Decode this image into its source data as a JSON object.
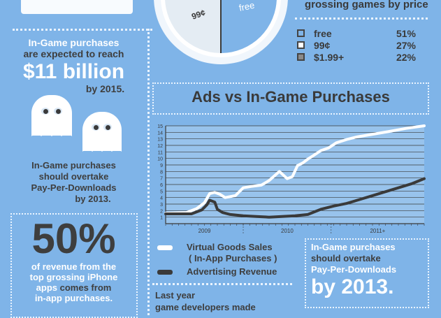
{
  "pie_labels": {
    "free": "free",
    "ninety_nine": "99¢"
  },
  "legend": {
    "title_tail": "grossing games by price",
    "items": [
      {
        "label": "free",
        "value": "51%",
        "color": "#7fb4e8"
      },
      {
        "label": "99¢",
        "value": "27%",
        "color": "#ffffff"
      },
      {
        "label": "$1.99+",
        "value": "22%",
        "color": "#8a8a8a"
      }
    ]
  },
  "left": {
    "purchases_intro_line1": "In-Game purchases",
    "purchases_intro_line2": "are expected to reach",
    "purchases_amount": "$11 billion",
    "purchases_year": "by 2015.",
    "overtake_line1": "In-Game purchases",
    "overtake_line2": "should overtake",
    "overtake_line3": "Pay-Per-Downloads",
    "overtake_line4": "by 2013.",
    "percent": "50%",
    "percent_line1": "of revenue from the",
    "percent_line2": "top grossing iPhone",
    "percent_line3a": "apps ",
    "percent_line3b": "comes from",
    "percent_line4": "in-app purchases."
  },
  "chart_data": {
    "type": "line",
    "title": "Ads vs In-Game Purchases",
    "xlabel": "",
    "ylabel": "",
    "x_tick_labels": [
      "2009",
      "2010",
      "2011+"
    ],
    "x_range": [
      0,
      100
    ],
    "ylim": [
      0,
      15
    ],
    "y_ticks": [
      1,
      2,
      3,
      4,
      5,
      6,
      7,
      8,
      9,
      10,
      11,
      12,
      13,
      14,
      15
    ],
    "grid": true,
    "series": [
      {
        "name": "Virtual Goods Sales ( In-App Purchases )",
        "color": "#ffffff",
        "x": [
          0,
          8,
          12,
          15,
          17,
          19,
          21,
          23,
          27,
          30,
          33,
          37,
          40,
          44,
          47,
          49,
          51,
          53,
          55,
          57,
          60,
          63,
          66,
          70,
          74,
          80,
          86,
          93,
          100
        ],
        "y": [
          1.6,
          1.7,
          2.3,
          3.2,
          4.6,
          4.8,
          4.5,
          4.0,
          4.3,
          5.5,
          5.7,
          5.9,
          6.6,
          8.0,
          6.9,
          7.2,
          8.9,
          9.3,
          9.9,
          10.4,
          11.2,
          11.6,
          12.4,
          12.9,
          13.3,
          13.7,
          14.1,
          14.6,
          15.0
        ],
        "legend_label_line1": "Virtual Goods Sales",
        "legend_label_line2": "( In-App Purchases )"
      },
      {
        "name": "Advertising Revenue",
        "color": "#3a3a3a",
        "x": [
          0,
          10,
          14,
          16,
          17,
          19,
          20,
          22,
          25,
          30,
          35,
          40,
          45,
          50,
          55,
          60,
          65,
          70,
          75,
          80,
          85,
          90,
          95,
          100
        ],
        "y": [
          1.5,
          1.5,
          2.1,
          2.9,
          3.6,
          3.3,
          2.2,
          1.7,
          1.4,
          1.2,
          1.1,
          1.0,
          1.1,
          1.2,
          1.4,
          2.2,
          2.7,
          3.1,
          3.7,
          4.3,
          4.9,
          5.5,
          6.1,
          6.9
        ],
        "legend_label_line1": "Advertising Revenue"
      }
    ]
  },
  "right_box": {
    "line1": "In-Game purchases",
    "line2": "should overtake",
    "line3": "Pay-Per-Downloads",
    "line4": "by 2013."
  },
  "bottom": {
    "line1": "Last year",
    "line2": "game developers made"
  }
}
